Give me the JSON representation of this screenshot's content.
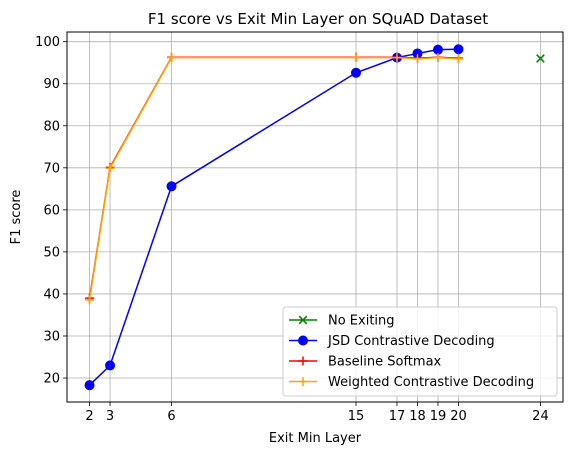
{
  "chart_data": {
    "type": "line",
    "title": "F1 score vs Exit Min Layer on SQuAD Dataset",
    "xlabel": "Exit Min Layer",
    "ylabel": "F1 score",
    "xlim": [
      0.9,
      25.1
    ],
    "ylim": [
      14.3,
      102.3
    ],
    "x_ticks": [
      2,
      3,
      6,
      15,
      17,
      18,
      19,
      20,
      24
    ],
    "y_ticks": [
      20,
      30,
      40,
      50,
      60,
      70,
      80,
      90,
      100
    ],
    "grid": true,
    "legend_position": "lower right",
    "series": [
      {
        "name": "No Exiting",
        "color": "#008000",
        "marker": "x",
        "x": [
          24
        ],
        "y": [
          96.0
        ]
      },
      {
        "name": "JSD Contrastive Decoding",
        "color": "#0000ff",
        "marker": "o",
        "x": [
          2,
          3,
          6,
          15,
          17,
          18,
          19,
          20
        ],
        "y": [
          18.3,
          23.0,
          65.6,
          92.6,
          96.2,
          97.2,
          98.1,
          98.2
        ]
      },
      {
        "name": "Baseline Softmax",
        "color": "#ff0000",
        "marker": "+",
        "x": [
          2,
          3,
          6,
          15,
          17,
          18,
          19,
          20
        ],
        "y": [
          39.0,
          70.1,
          96.3,
          96.3,
          96.3,
          96.1,
          96.3,
          96.1
        ]
      },
      {
        "name": "Weighted Contrastive Decoding",
        "color": "#ffa500",
        "marker": "+",
        "x": [
          2,
          3,
          6,
          15,
          17,
          18,
          19,
          20
        ],
        "y": [
          38.6,
          69.9,
          96.2,
          96.2,
          96.2,
          95.9,
          96.2,
          95.9
        ]
      }
    ]
  }
}
